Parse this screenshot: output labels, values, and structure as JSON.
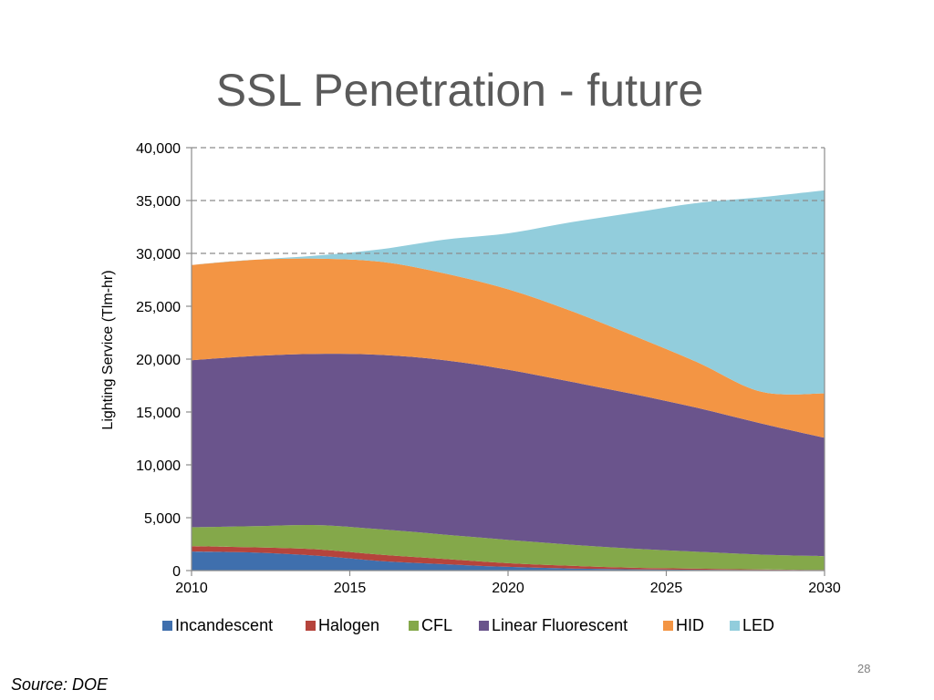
{
  "slide": {
    "title": "SSL Penetration - future",
    "source": "Source: DOE",
    "page_number": "28"
  },
  "chart_data": {
    "type": "area",
    "stacked": true,
    "title": "",
    "xlabel": "",
    "ylabel": "Lighting Service (Tlm-hr)",
    "xlim": [
      2010,
      2030
    ],
    "ylim": [
      0,
      40000
    ],
    "x_ticks": [
      "2010",
      "2015",
      "2020",
      "2025",
      "2030"
    ],
    "y_ticks": [
      "0",
      "5,000",
      "10,000",
      "15,000",
      "20,000",
      "25,000",
      "30,000",
      "35,000",
      "40,000"
    ],
    "grid": "horizontal dashed lines at 30,000, 35,000 and 40,000",
    "legend_position": "bottom",
    "x": [
      2010,
      2012,
      2014,
      2016,
      2018,
      2020,
      2022,
      2024,
      2026,
      2028,
      2030
    ],
    "series": [
      {
        "name": "Incandescent",
        "color": "#3f6fad",
        "values": [
          1800,
          1700,
          1400,
          900,
          600,
          350,
          200,
          120,
          80,
          50,
          30
        ]
      },
      {
        "name": "Halogen",
        "color": "#b5443c",
        "values": [
          500,
          500,
          600,
          600,
          500,
          350,
          250,
          150,
          100,
          60,
          30
        ]
      },
      {
        "name": "CFL",
        "color": "#84a84a",
        "values": [
          1800,
          2000,
          2300,
          2400,
          2300,
          2200,
          2000,
          1800,
          1600,
          1400,
          1300
        ]
      },
      {
        "name": "Linear Fluorescent",
        "color": "#6a548c",
        "values": [
          15800,
          16100,
          16200,
          16500,
          16500,
          16100,
          15400,
          14600,
          13600,
          12400,
          11200
        ]
      },
      {
        "name": "HID",
        "color": "#f39544",
        "values": [
          9000,
          9100,
          9000,
          8800,
          8200,
          7600,
          6700,
          5500,
          4300,
          3000,
          4200
        ]
      },
      {
        "name": "LED",
        "color": "#92cddc",
        "values": [
          0,
          0,
          300,
          1200,
          3200,
          5300,
          8400,
          11700,
          15100,
          18400,
          19200
        ]
      }
    ]
  }
}
